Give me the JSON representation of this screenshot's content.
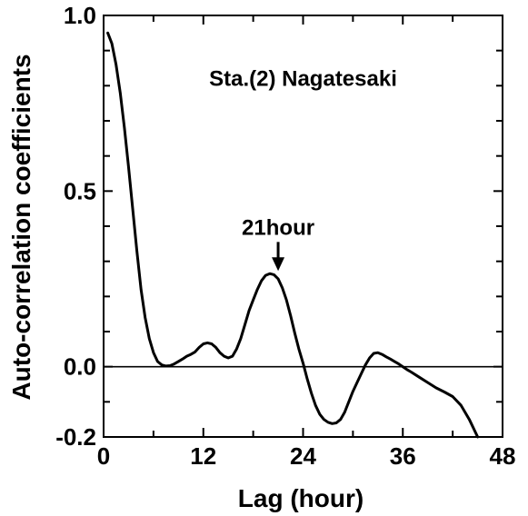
{
  "chart_data": {
    "type": "line",
    "title": "",
    "xlabel": "Lag (hour)",
    "ylabel": "Auto-correlation coefficients",
    "xlim": [
      0,
      48
    ],
    "ylim": [
      -0.2,
      1.0
    ],
    "x_ticks": [
      0,
      12,
      24,
      36,
      48
    ],
    "x_tick_labels": [
      "0",
      "12",
      "24",
      "36",
      "48"
    ],
    "y_ticks": [
      -0.2,
      0.0,
      0.5,
      1.0
    ],
    "y_tick_labels": [
      "-0.2",
      "0.0",
      "0.5",
      "1.0"
    ],
    "grid": false,
    "reference_line": {
      "y": 0.0
    },
    "annotations": [
      {
        "text": "Sta.(2) Nagatesaki",
        "x": 24,
        "y": 0.8
      },
      {
        "text": "21hour",
        "x": 21,
        "y": 0.35,
        "arrow_to": [
          21,
          0.27
        ]
      }
    ],
    "series": [
      {
        "line_color": "#000000",
        "x": [
          0.5,
          1,
          1.5,
          2,
          2.5,
          3,
          3.5,
          4,
          4.5,
          5,
          5.5,
          6,
          6.5,
          7,
          7.5,
          8,
          8.5,
          9,
          9.5,
          10,
          10.5,
          11,
          11.5,
          12,
          12.5,
          13,
          13.5,
          14,
          14.5,
          15,
          15.5,
          16,
          16.5,
          17,
          17.5,
          18,
          18.5,
          19,
          19.5,
          20,
          20.5,
          21,
          21.5,
          22,
          22.5,
          23,
          23.5,
          24,
          24.5,
          25,
          25.5,
          26,
          26.5,
          27,
          27.5,
          28,
          28.5,
          29,
          29.5,
          30,
          30.5,
          31,
          31.5,
          32,
          32.5,
          33,
          33.5,
          34,
          34.5,
          35,
          35.5,
          36,
          36.5,
          37,
          38,
          39,
          40,
          41,
          42,
          43,
          44,
          45
        ],
        "y": [
          0.95,
          0.92,
          0.86,
          0.78,
          0.68,
          0.57,
          0.45,
          0.33,
          0.22,
          0.14,
          0.08,
          0.04,
          0.015,
          0.005,
          0.002,
          0.003,
          0.008,
          0.015,
          0.022,
          0.03,
          0.035,
          0.042,
          0.055,
          0.065,
          0.068,
          0.065,
          0.055,
          0.04,
          0.03,
          0.025,
          0.03,
          0.05,
          0.08,
          0.12,
          0.16,
          0.19,
          0.22,
          0.245,
          0.26,
          0.265,
          0.262,
          0.25,
          0.225,
          0.19,
          0.145,
          0.095,
          0.05,
          0.01,
          -0.035,
          -0.075,
          -0.11,
          -0.135,
          -0.15,
          -0.158,
          -0.162,
          -0.16,
          -0.15,
          -0.13,
          -0.1,
          -0.07,
          -0.045,
          -0.02,
          0.005,
          0.025,
          0.038,
          0.04,
          0.035,
          0.028,
          0.022,
          0.015,
          0.008,
          0.0,
          -0.008,
          -0.015,
          -0.03,
          -0.045,
          -0.06,
          -0.072,
          -0.085,
          -0.11,
          -0.15,
          -0.2
        ]
      }
    ]
  }
}
